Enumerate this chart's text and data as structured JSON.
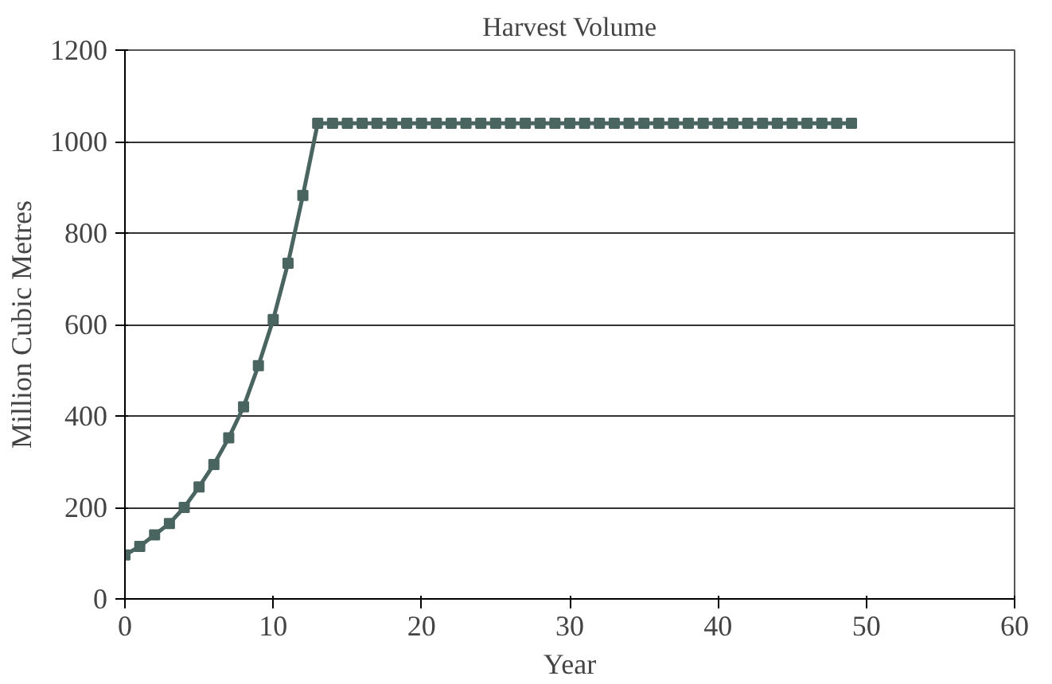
{
  "chart_data": {
    "type": "line",
    "title": "Harvest Volume",
    "xlabel": "Year",
    "ylabel": "Million Cubic Metres",
    "x": [
      0,
      1,
      2,
      3,
      4,
      5,
      6,
      7,
      8,
      9,
      10,
      11,
      12,
      13,
      14,
      15,
      16,
      17,
      18,
      19,
      20,
      21,
      22,
      23,
      24,
      25,
      26,
      27,
      28,
      29,
      30,
      31,
      32,
      33,
      34,
      35,
      36,
      37,
      38,
      39,
      40,
      41,
      42,
      43,
      44,
      45,
      46,
      47,
      48,
      49
    ],
    "series": [
      {
        "color": "#4a6460",
        "values": [
          96,
          115,
          140,
          165,
          200,
          245,
          294,
          352,
          420,
          510,
          611,
          734,
          882,
          1040,
          1040,
          1040,
          1040,
          1040,
          1040,
          1040,
          1040,
          1040,
          1040,
          1040,
          1040,
          1040,
          1040,
          1040,
          1040,
          1040,
          1040,
          1040,
          1040,
          1040,
          1040,
          1040,
          1040,
          1040,
          1040,
          1040,
          1040,
          1040,
          1040,
          1040,
          1040,
          1040,
          1040,
          1040,
          1040,
          1040
        ]
      }
    ],
    "xlim": [
      0,
      60
    ],
    "xticks": [
      0,
      10,
      20,
      30,
      40,
      50,
      60
    ],
    "ylim": [
      0,
      1200
    ],
    "yticks": [
      0,
      200,
      400,
      600,
      800,
      1000,
      1200
    ],
    "grid": "y",
    "marker": "square",
    "line_style": "solid"
  }
}
